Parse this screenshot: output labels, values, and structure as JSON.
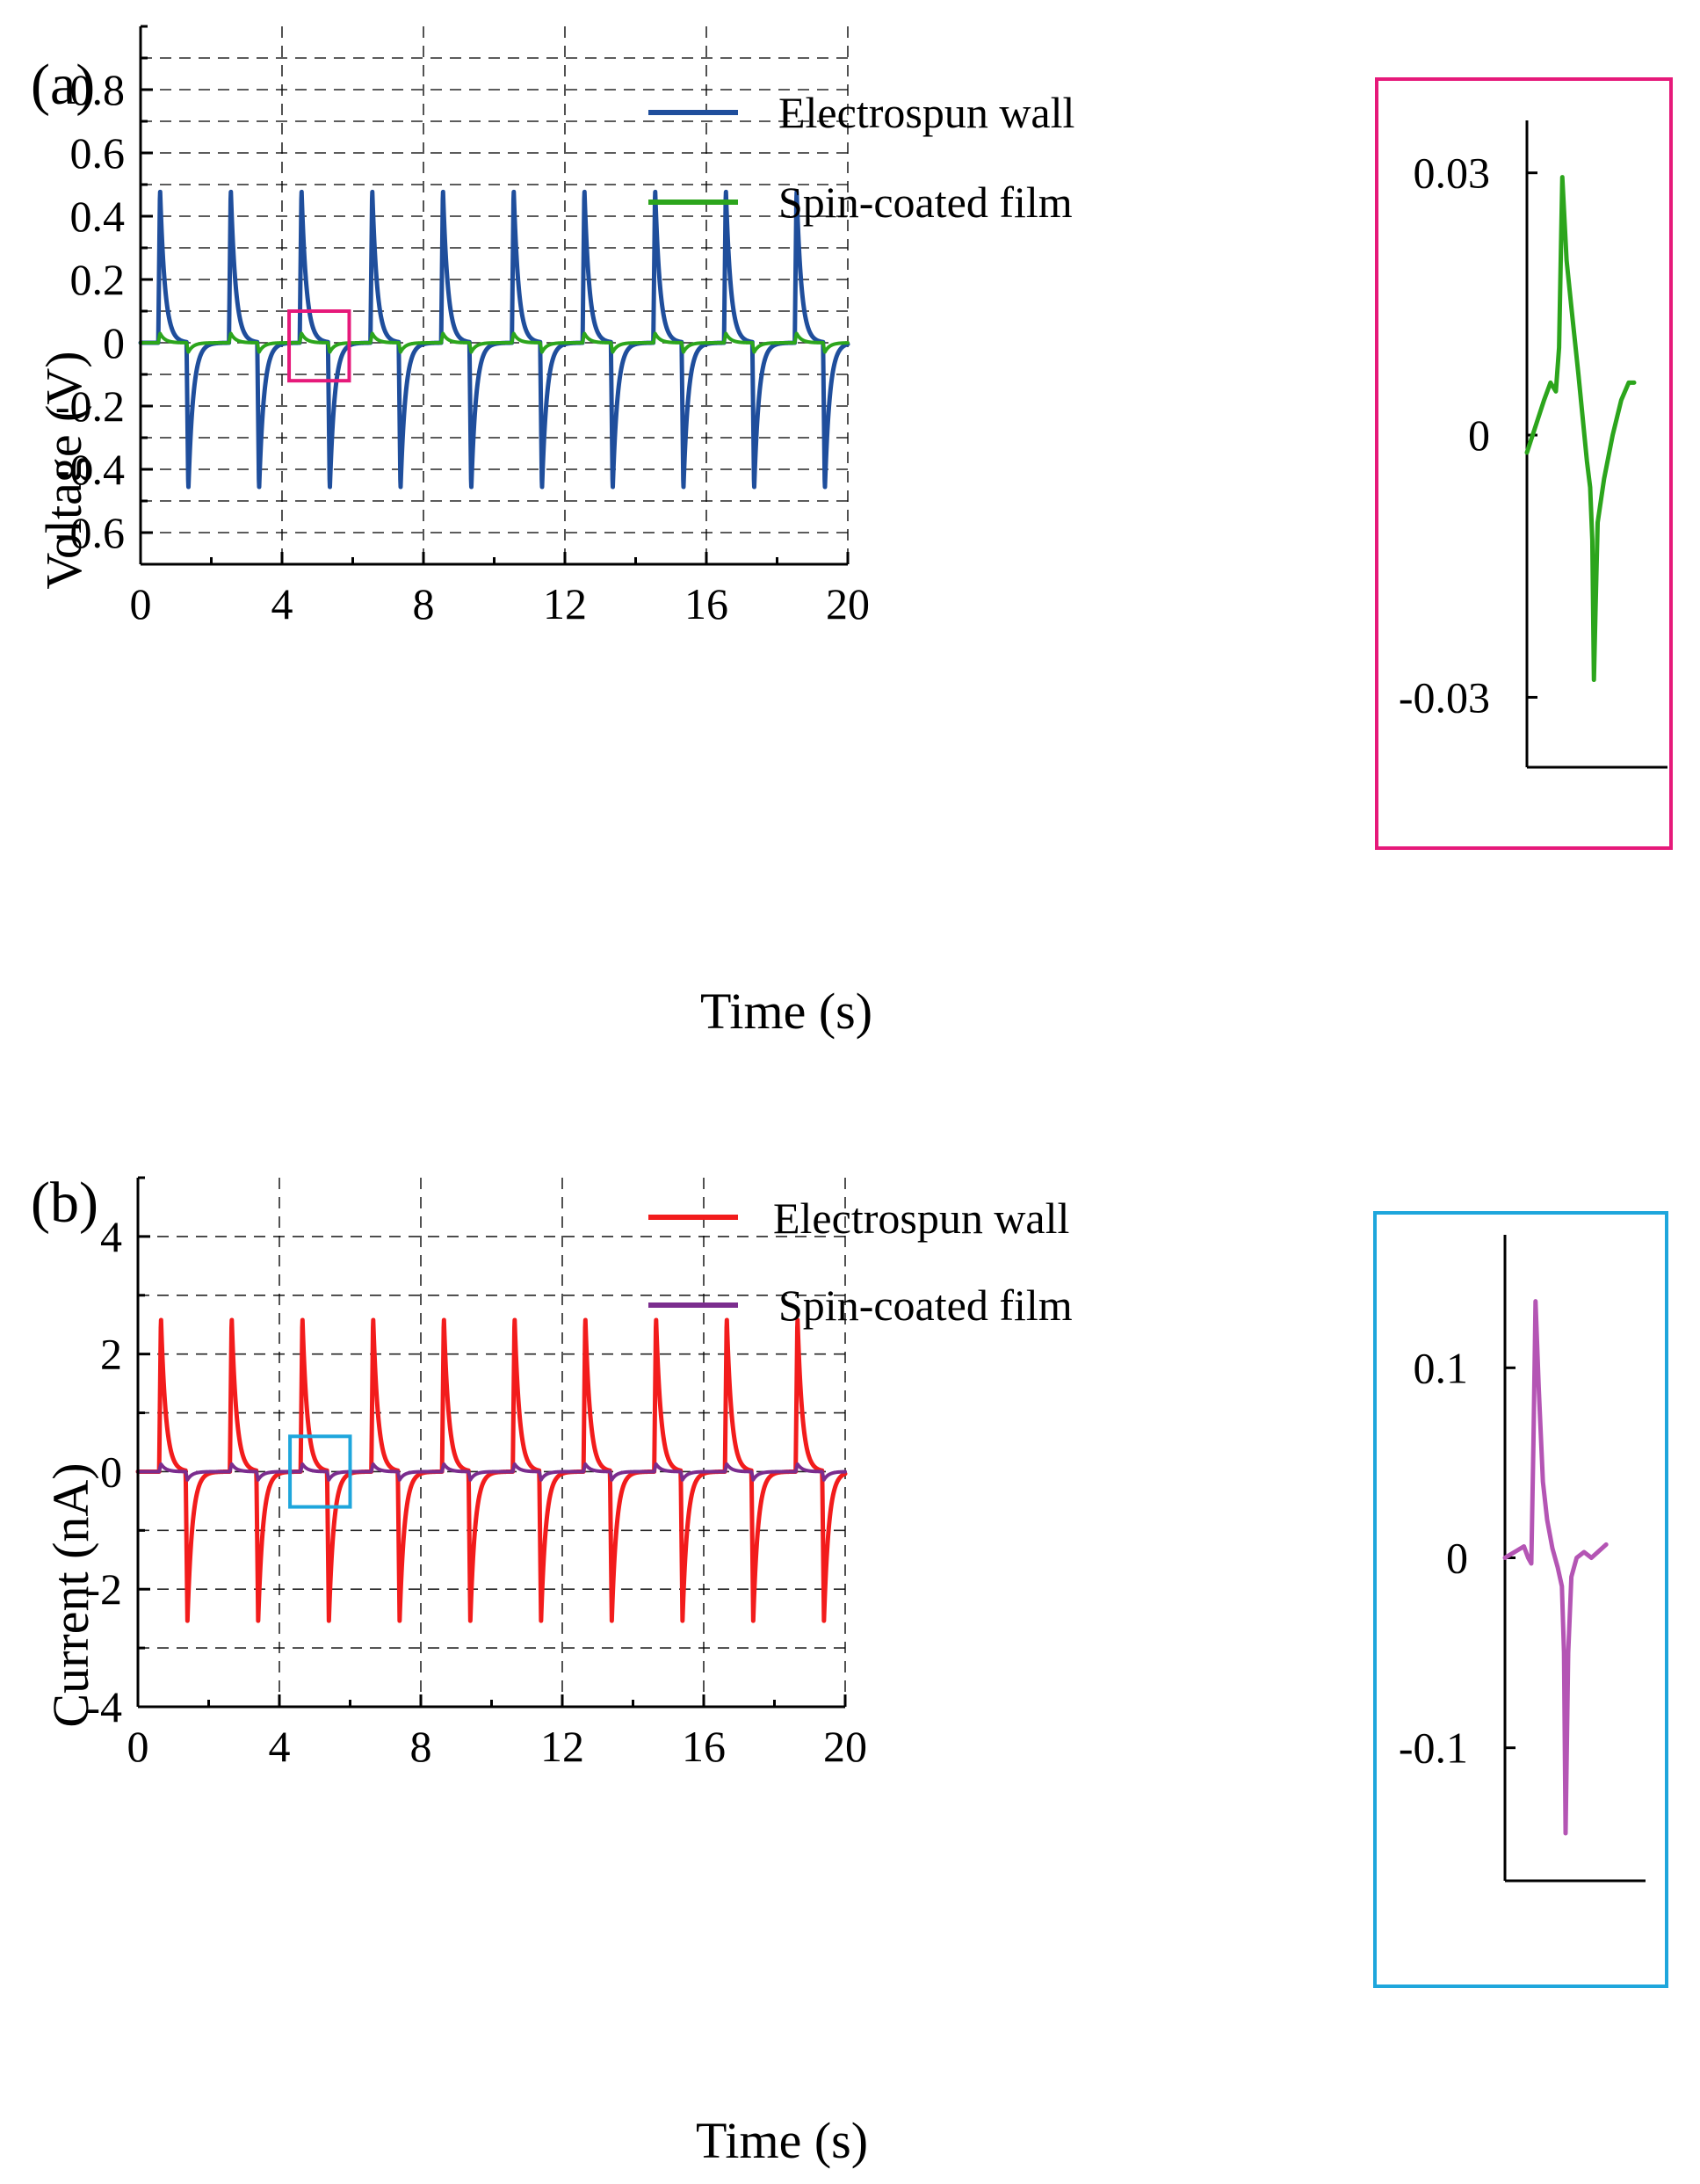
{
  "chart_data": [
    {
      "panel_label": "(a)",
      "type": "line",
      "title": "",
      "xlabel": "Time (s)",
      "ylabel": "Voltage (V)",
      "xlim": [
        0,
        20
      ],
      "ylim": [
        -0.7,
        1.0
      ],
      "xticks": [
        0,
        4,
        8,
        12,
        16,
        20
      ],
      "xtick_labels": [
        "0",
        "4",
        "8",
        "12",
        "16",
        "20"
      ],
      "yticks": [
        -0.6,
        -0.4,
        -0.2,
        0,
        0.2,
        0.4,
        0.6,
        0.8
      ],
      "ytick_labels": [
        "-0.6",
        "-0.4",
        "-0.2",
        "0",
        "0.2",
        "0.4",
        "0.6",
        "0.8"
      ],
      "grid": true,
      "legend_position": "top",
      "series": [
        {
          "name": "Electrospun wall",
          "color": "#1f4e9c",
          "pulse_period_s": 2,
          "positive_peak_times": [
            0.55,
            2.55,
            4.55,
            6.55,
            8.55,
            10.55,
            12.55,
            14.55,
            16.55,
            18.55
          ],
          "positive_peak_value": 0.49,
          "negative_peak_times": [
            1.35,
            3.35,
            5.35,
            7.35,
            9.35,
            11.35,
            13.35,
            15.35,
            17.35,
            19.35
          ],
          "negative_peak_value": -0.47
        },
        {
          "name": "Spin-coated film",
          "color": "#2ca51c",
          "pulse_period_s": 2,
          "positive_peak_times": [
            0.55,
            2.55,
            4.55,
            6.55,
            8.55,
            10.55,
            12.55,
            14.55,
            16.55,
            18.55
          ],
          "positive_peak_value": 0.03,
          "negative_peak_times": [
            1.35,
            3.35,
            5.35,
            7.35,
            9.35,
            11.35,
            13.35,
            15.35,
            17.35,
            19.35
          ],
          "negative_peak_value": -0.03
        }
      ],
      "zoom_box": {
        "x_range": [
          4.2,
          5.9
        ],
        "y_range": [
          -0.12,
          0.1
        ],
        "color": "#e6197a"
      },
      "inset": {
        "border_color": "#e6197a",
        "yticks": [
          -0.03,
          0,
          0.03
        ],
        "ytick_labels": [
          "-0.03",
          "0",
          "0.03"
        ],
        "ylim": [
          -0.038,
          0.036
        ],
        "series_color": "#2ca51c",
        "trace": [
          [
            0.0,
            -0.002
          ],
          [
            0.08,
            0.001
          ],
          [
            0.16,
            0.004
          ],
          [
            0.22,
            0.006
          ],
          [
            0.27,
            0.005
          ],
          [
            0.3,
            0.01
          ],
          [
            0.33,
            0.0295
          ],
          [
            0.37,
            0.02
          ],
          [
            0.42,
            0.014
          ],
          [
            0.48,
            0.007
          ],
          [
            0.52,
            0.002
          ],
          [
            0.56,
            -0.003
          ],
          [
            0.59,
            -0.006
          ],
          [
            0.61,
            -0.012
          ],
          [
            0.625,
            -0.028
          ],
          [
            0.64,
            -0.02
          ],
          [
            0.66,
            -0.01
          ],
          [
            0.72,
            -0.005
          ],
          [
            0.8,
            0.0
          ],
          [
            0.88,
            0.004
          ],
          [
            0.95,
            0.006
          ],
          [
            1.0,
            0.006
          ]
        ]
      }
    },
    {
      "panel_label": "(b)",
      "type": "line",
      "title": "",
      "xlabel": "Time (s)",
      "ylabel": "Current (nA)",
      "xlim": [
        0,
        20
      ],
      "ylim": [
        -4,
        5
      ],
      "xticks": [
        0,
        4,
        8,
        12,
        16,
        20
      ],
      "xtick_labels": [
        "0",
        "4",
        "8",
        "12",
        "16",
        "20"
      ],
      "yticks": [
        -4,
        -2,
        0,
        2,
        4
      ],
      "ytick_labels": [
        "-4",
        "-2",
        "0",
        "2",
        "4"
      ],
      "grid": true,
      "legend_position": "top",
      "series": [
        {
          "name": "Electrospun wall",
          "color": "#f21c1c",
          "pulse_period_s": 2,
          "positive_peak_times": [
            0.65,
            2.65,
            4.65,
            6.65,
            8.65,
            10.65,
            12.65,
            14.65,
            16.65,
            18.65
          ],
          "positive_peak_value": 2.65,
          "negative_peak_times": [
            1.4,
            3.4,
            5.4,
            7.4,
            9.4,
            11.4,
            13.4,
            15.4,
            17.4,
            19.4
          ],
          "negative_peak_value": -2.55
        },
        {
          "name": "Spin-coated film",
          "color": "#7b2d8e",
          "pulse_period_s": 2,
          "positive_peak_times": [
            0.65,
            2.65,
            4.65,
            6.65,
            8.65,
            10.65,
            12.65,
            14.65,
            16.65,
            18.65
          ],
          "positive_peak_value": 0.13,
          "negative_peak_times": [
            1.4,
            3.4,
            5.4,
            7.4,
            9.4,
            11.4,
            13.4,
            15.4,
            17.4,
            19.4
          ],
          "negative_peak_value": -0.14
        }
      ],
      "zoom_box": {
        "x_range": [
          4.3,
          6.0
        ],
        "y_range": [
          -0.6,
          0.6
        ],
        "color": "#1ea6dc"
      },
      "inset": {
        "border_color": "#1ea6dc",
        "yticks": [
          -0.1,
          0,
          0.1
        ],
        "ytick_labels": [
          "-0.1",
          "0",
          "0.1"
        ],
        "ylim": [
          -0.17,
          0.17
        ],
        "series_color": "#b455b4",
        "trace": [
          [
            0.0,
            0.0
          ],
          [
            0.06,
            0.002
          ],
          [
            0.12,
            0.004
          ],
          [
            0.18,
            0.006
          ],
          [
            0.22,
            0.0
          ],
          [
            0.25,
            -0.003
          ],
          [
            0.27,
            0.06
          ],
          [
            0.29,
            0.135
          ],
          [
            0.32,
            0.09
          ],
          [
            0.36,
            0.04
          ],
          [
            0.4,
            0.02
          ],
          [
            0.45,
            0.005
          ],
          [
            0.5,
            -0.005
          ],
          [
            0.54,
            -0.015
          ],
          [
            0.56,
            -0.05
          ],
          [
            0.575,
            -0.145
          ],
          [
            0.6,
            -0.05
          ],
          [
            0.63,
            -0.01
          ],
          [
            0.68,
            0.0
          ],
          [
            0.75,
            0.003
          ],
          [
            0.82,
            0.0
          ],
          [
            0.9,
            0.004
          ],
          [
            0.96,
            0.007
          ]
        ]
      }
    }
  ]
}
